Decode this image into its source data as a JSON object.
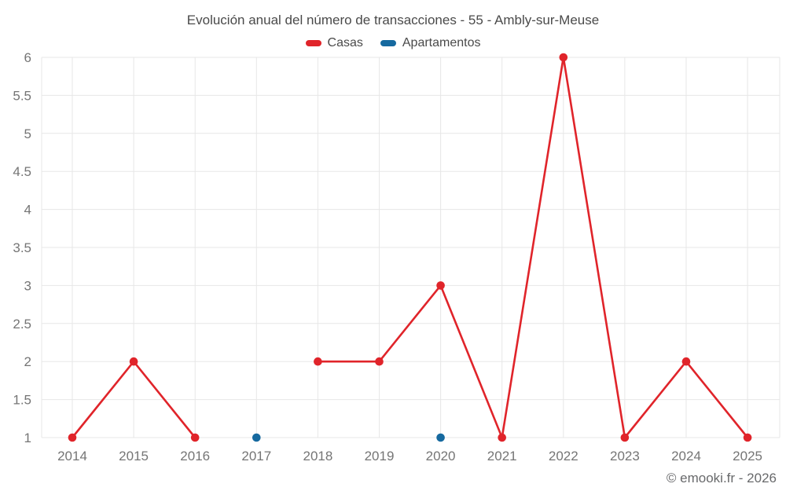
{
  "title": "Evolución anual del número de transacciones - 55 - Ambly-sur-Meuse",
  "footer": "© emooki.fr - 2026",
  "colors": {
    "casas": "#e0242a",
    "apartamentos": "#16699f",
    "grid": "#e7e7e7",
    "axis_text": "#757575",
    "title_text": "#4a4a4a",
    "footer_text": "#68696b"
  },
  "chart_data": {
    "type": "line",
    "title": "Evolución anual del número de transacciones - 55 - Ambly-sur-Meuse",
    "x": [
      2014,
      2015,
      2016,
      2017,
      2018,
      2019,
      2020,
      2021,
      2022,
      2023,
      2024,
      2025
    ],
    "series": [
      {
        "name": "Casas",
        "color": "#e0242a",
        "values": [
          1,
          2,
          1,
          null,
          2,
          2,
          3,
          1,
          6,
          1,
          2,
          1
        ]
      },
      {
        "name": "Apartamentos",
        "color": "#16699f",
        "values": [
          null,
          null,
          null,
          1,
          null,
          null,
          1,
          null,
          null,
          null,
          null,
          null
        ]
      }
    ],
    "ylim": [
      1,
      6
    ],
    "ytick_step": 0.5,
    "grid": true,
    "legend_position": "top",
    "xlabel": "",
    "ylabel": ""
  }
}
